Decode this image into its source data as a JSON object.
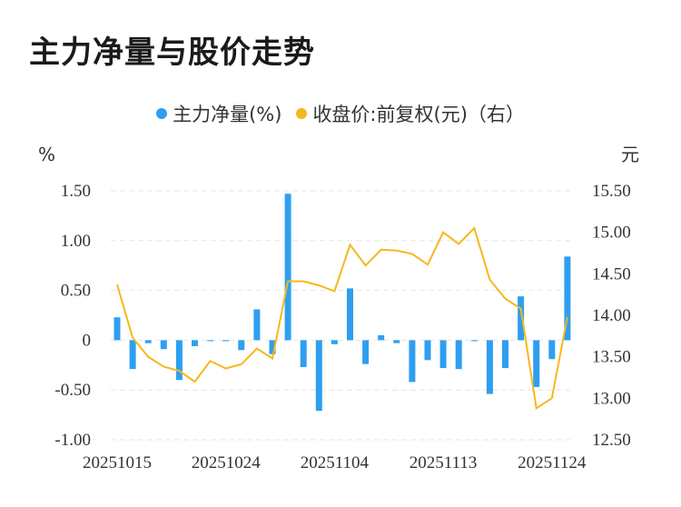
{
  "header": {
    "title": "主力净量与股价走势"
  },
  "legend": {
    "bar_label": "主力净量(%)",
    "line_label": "收盘价:前复权(元)（右）"
  },
  "colors": {
    "bar": "#2e9ff0",
    "line": "#f5b81c",
    "grid": "#e6e6e6"
  },
  "chart_data": {
    "type": "bar",
    "title": "主力净量与股价走势",
    "left_unit": "%",
    "right_unit": "元",
    "ylim_left": [
      -1.0,
      1.5
    ],
    "ylim_right": [
      12.5,
      15.5
    ],
    "yticks_left": [
      "1.50",
      "1.00",
      "0.50",
      "0",
      "-0.50",
      "-1.00"
    ],
    "yticks_right": [
      "15.50",
      "15.00",
      "14.50",
      "14.00",
      "13.50",
      "13.00",
      "12.50"
    ],
    "xtick_labels": [
      "20251015",
      "20251024",
      "20251104",
      "20251113",
      "20251124"
    ],
    "xtick_index": [
      0,
      7,
      14,
      21,
      28
    ],
    "grid": true,
    "legend_position": "top",
    "series": [
      {
        "name": "主力净量(%)",
        "type": "bar",
        "axis": "left",
        "values": [
          0.23,
          -0.29,
          -0.03,
          -0.09,
          -0.4,
          -0.06,
          -0.01,
          -0.01,
          -0.1,
          0.31,
          -0.14,
          1.47,
          -0.27,
          -0.71,
          -0.04,
          0.52,
          -0.24,
          0.05,
          -0.03,
          -0.42,
          -0.2,
          -0.28,
          -0.29,
          -0.01,
          -0.54,
          -0.28,
          0.44,
          -0.47,
          -0.19,
          0.84
        ]
      },
      {
        "name": "收盘价:前复权(元)（右）",
        "type": "line",
        "axis": "right",
        "values": [
          14.37,
          13.73,
          13.5,
          13.38,
          13.33,
          13.2,
          13.45,
          13.36,
          13.41,
          13.6,
          13.48,
          14.41,
          14.41,
          14.36,
          14.29,
          14.85,
          14.6,
          14.79,
          14.78,
          14.74,
          14.61,
          15.0,
          14.86,
          15.05,
          14.43,
          14.2,
          14.08,
          12.88,
          13.0,
          13.98
        ]
      }
    ]
  }
}
